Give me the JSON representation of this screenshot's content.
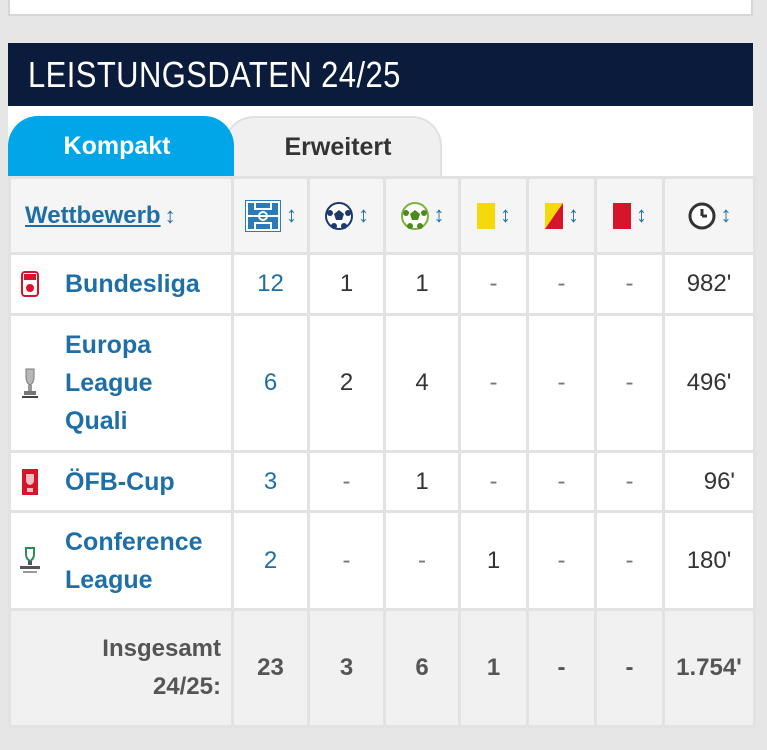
{
  "header": {
    "title": "LEISTUNGSDATEN 24/25"
  },
  "tabs": [
    {
      "label": "Kompakt",
      "active": true
    },
    {
      "label": "Erweitert",
      "active": false
    }
  ],
  "columns": {
    "competition": "Wettbewerb",
    "sort_glyph": "↕",
    "icons": [
      "pitch-icon",
      "ball-goal-icon",
      "ball-assist-icon",
      "yellow-card-icon",
      "yellow-red-card-icon",
      "red-card-icon",
      "clock-icon"
    ]
  },
  "rows": [
    {
      "competition": "Bundesliga",
      "logo": "bundesliga-logo-icon",
      "apps": "12",
      "goals": "1",
      "assists": "1",
      "yellow": "-",
      "yellow_red": "-",
      "red": "-",
      "minutes": "982'"
    },
    {
      "competition": "Europa League Quali",
      "logo": "europa-league-logo-icon",
      "apps": "6",
      "goals": "2",
      "assists": "4",
      "yellow": "-",
      "yellow_red": "-",
      "red": "-",
      "minutes": "496'"
    },
    {
      "competition": "ÖFB-Cup",
      "logo": "oefb-cup-logo-icon",
      "apps": "3",
      "goals": "-",
      "assists": "1",
      "yellow": "-",
      "yellow_red": "-",
      "red": "-",
      "minutes": "96'"
    },
    {
      "competition": "Conference League",
      "logo": "conference-league-logo-icon",
      "apps": "2",
      "goals": "-",
      "assists": "-",
      "yellow": "1",
      "yellow_red": "-",
      "red": "-",
      "minutes": "180'"
    }
  ],
  "total": {
    "label": "Insgesamt 24/25:",
    "apps": "23",
    "goals": "3",
    "assists": "6",
    "yellow": "1",
    "yellow_red": "-",
    "red": "-",
    "minutes": "1.754'"
  },
  "colors": {
    "header_bg": "#0b1b3b",
    "tab_active": "#00a6e8",
    "link": "#1e6fa8",
    "yellow_card": "#f5d90a",
    "red_card": "#d6152a"
  }
}
